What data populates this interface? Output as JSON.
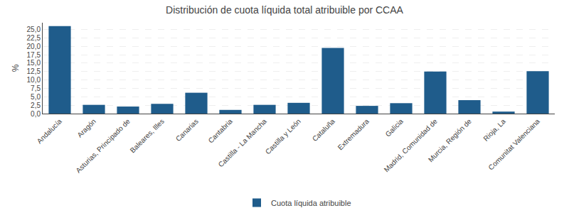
{
  "chart_data": {
    "type": "bar",
    "title": "Distribución de cuota líquida total atribuible por CCAA",
    "categories": [
      "Andalucía",
      "Aragón",
      "Asturias, Principado de",
      "Baleares, Illes",
      "Canarias",
      "Cantabria",
      "Castilla - La Mancha",
      "Castilla y León",
      "Cataluña",
      "Extremadura",
      "Galicia",
      "Madrid, Comunidad de",
      "Murcia, Región de",
      "Rioja, La",
      "Comunitat Valenciana"
    ],
    "series": [
      {
        "name": "Cuota líquida atribuible",
        "color": "#1f5c8b",
        "values": [
          26.0,
          2.6,
          2.1,
          2.9,
          6.2,
          1.1,
          2.6,
          3.2,
          19.5,
          2.3,
          3.1,
          12.5,
          4.0,
          0.6,
          12.6
        ]
      }
    ],
    "ylabel": "%",
    "ylim": [
      0,
      27
    ],
    "yticks": [
      {
        "value": 0.0,
        "label": "0,0"
      },
      {
        "value": 2.5,
        "label": "2,5"
      },
      {
        "value": 5.0,
        "label": "5,0"
      },
      {
        "value": 7.5,
        "label": "7,5"
      },
      {
        "value": 10.0,
        "label": "10,0"
      },
      {
        "value": 12.5,
        "label": "12,5"
      },
      {
        "value": 15.0,
        "label": "15,0"
      },
      {
        "value": 17.5,
        "label": "17,5"
      },
      {
        "value": 20.0,
        "label": "20,0"
      },
      {
        "value": 22.5,
        "label": "22,5"
      },
      {
        "value": 25.0,
        "label": "25,0"
      }
    ],
    "grid": true,
    "legend": "bottom"
  }
}
